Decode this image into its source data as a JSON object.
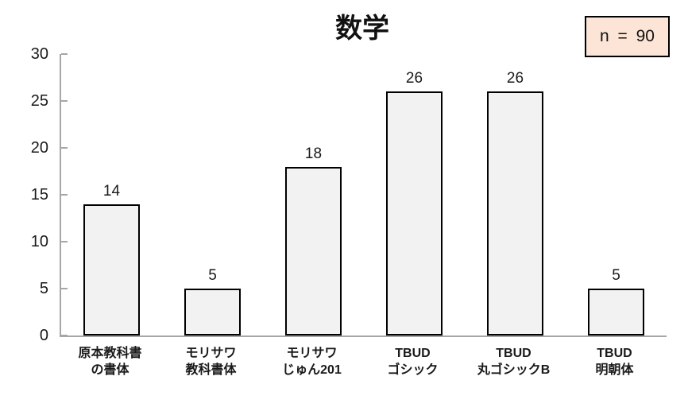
{
  "chart": {
    "title": "数学",
    "legend_box_text": "n = 90",
    "colors": {
      "bar_fill": "#f2f2f2",
      "bar_border": "#000000",
      "axis": "#a6a6a6",
      "legend_fill": "#fce4d6",
      "legend_border": "#000000",
      "background": "#ffffff"
    }
  },
  "chart_data": {
    "type": "bar",
    "title": "数学",
    "categories": [
      "原本教科書\nの書体",
      "モリサワ\n教科書体",
      "モリサワ\nじゅん201",
      "TBUD\nゴシック",
      "TBUD\n丸ゴシックB",
      "TBUD\n明朝体"
    ],
    "values": [
      14,
      5,
      18,
      26,
      26,
      5
    ],
    "data_labels": [
      14,
      5,
      18,
      26,
      26,
      5
    ],
    "annotation": "n = 90",
    "xlabel": "",
    "ylabel": "",
    "ylim": [
      0,
      30
    ],
    "y_ticks": [
      0,
      5,
      10,
      15,
      20,
      25,
      30
    ],
    "grid": false,
    "legend_position": "top-right",
    "data_labels_shown": true
  }
}
